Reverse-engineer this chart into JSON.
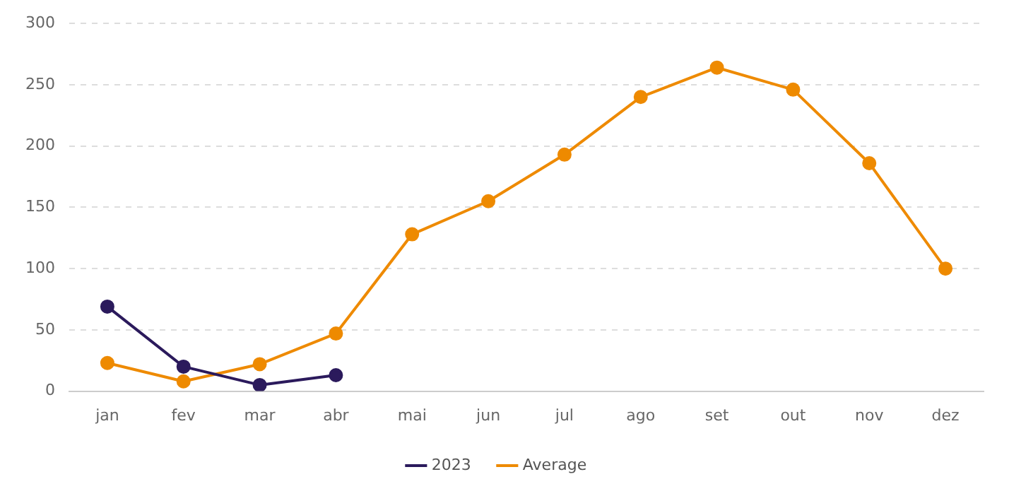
{
  "chart_data": {
    "type": "line",
    "categories": [
      "jan",
      "fev",
      "mar",
      "abr",
      "mai",
      "jun",
      "jul",
      "ago",
      "set",
      "out",
      "nov",
      "dez"
    ],
    "series": [
      {
        "name": "2023",
        "color": "#2b1a5c",
        "values": [
          69,
          20,
          5,
          13,
          null,
          null,
          null,
          null,
          null,
          null,
          null,
          null
        ]
      },
      {
        "name": "Average",
        "color": "#ee8a00",
        "values": [
          23,
          8,
          22,
          47,
          128,
          155,
          193,
          240,
          264,
          246,
          186,
          100
        ]
      }
    ],
    "ylim": [
      0,
      300
    ],
    "yticks": [
      0,
      50,
      100,
      150,
      200,
      250,
      300
    ],
    "grid": "y",
    "legend": "bottom",
    "marker": "circle",
    "line_style": "solid"
  }
}
